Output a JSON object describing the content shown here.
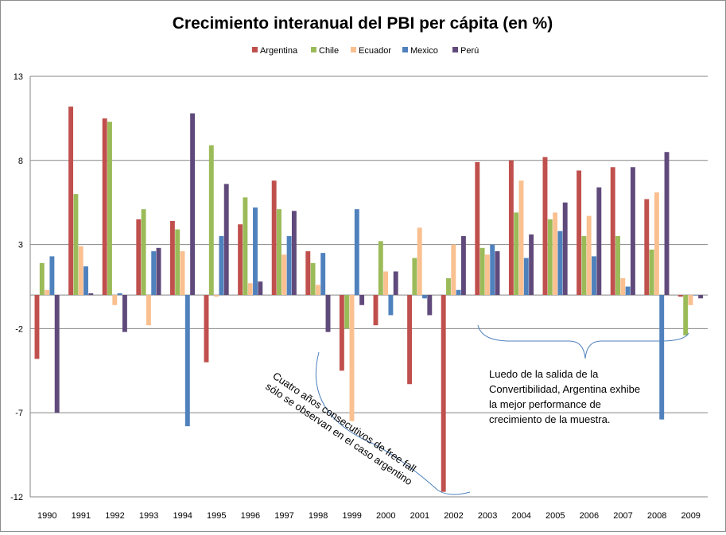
{
  "chart_data": {
    "type": "bar",
    "title": "Crecimiento interanual del PBI per cápita (en %)",
    "xlabel": "",
    "ylabel": "",
    "ylim": [
      -12,
      13
    ],
    "yticks": [
      "13",
      "8",
      "3",
      "-2",
      "-7",
      "-12"
    ],
    "gridlines": true,
    "legend_position": "top",
    "categories": [
      "1990",
      "1991",
      "1992",
      "1993",
      "1994",
      "1995",
      "1996",
      "1997",
      "1998",
      "1999",
      "2000",
      "2001",
      "2002",
      "2003",
      "2004",
      "2005",
      "2006",
      "2007",
      "2008",
      "2009"
    ],
    "series": [
      {
        "name": "Argentina",
        "color": "#c0504d",
        "values": [
          -3.8,
          11.2,
          10.5,
          4.5,
          4.4,
          -4.0,
          4.2,
          6.8,
          2.6,
          -4.5,
          -1.8,
          -5.3,
          -11.7,
          7.9,
          8.0,
          8.2,
          7.4,
          7.6,
          5.7,
          -0.1
        ]
      },
      {
        "name": "Chile",
        "color": "#9bbb59",
        "values": [
          1.9,
          6.0,
          10.3,
          5.1,
          3.9,
          8.9,
          5.8,
          5.1,
          1.9,
          -2.0,
          3.2,
          2.2,
          1.0,
          2.8,
          4.9,
          4.5,
          3.5,
          3.5,
          2.7,
          -2.4
        ]
      },
      {
        "name": "Ecuador",
        "color": "#fac090",
        "values": [
          0.3,
          2.9,
          -0.6,
          -1.8,
          2.6,
          -0.1,
          0.7,
          2.4,
          0.6,
          -7.5,
          1.4,
          4.0,
          3.0,
          2.4,
          6.8,
          4.9,
          4.7,
          1.0,
          6.1,
          -0.6
        ]
      },
      {
        "name": "Mexico",
        "color": "#4f81bd",
        "values": [
          2.3,
          1.7,
          0.1,
          2.6,
          -7.8,
          3.5,
          5.2,
          3.5,
          2.5,
          5.1,
          -1.2,
          -0.2,
          0.3,
          3.0,
          2.2,
          3.8,
          2.3,
          0.5,
          -7.4,
          0.0
        ]
      },
      {
        "name": "Perú",
        "color": "#604a7b",
        "values": [
          -7.0,
          0.1,
          -2.2,
          2.8,
          10.8,
          6.6,
          0.8,
          5.0,
          -2.2,
          -0.6,
          1.4,
          -1.2,
          3.5,
          2.6,
          3.6,
          5.5,
          6.4,
          7.6,
          8.5,
          -0.2
        ]
      }
    ],
    "annotations": [
      {
        "name": "free-fall",
        "lines": [
          "Cuatro años  consecutivos de  free fall",
          "sólo se observan en el caso argentino"
        ]
      },
      {
        "name": "post-convertibilidad",
        "lines": [
          "Luedo de la salida de la",
          "Convertibilidad, Argentina exhibe",
          "la mejor performance de",
          "crecimiento de la muestra."
        ]
      }
    ]
  }
}
